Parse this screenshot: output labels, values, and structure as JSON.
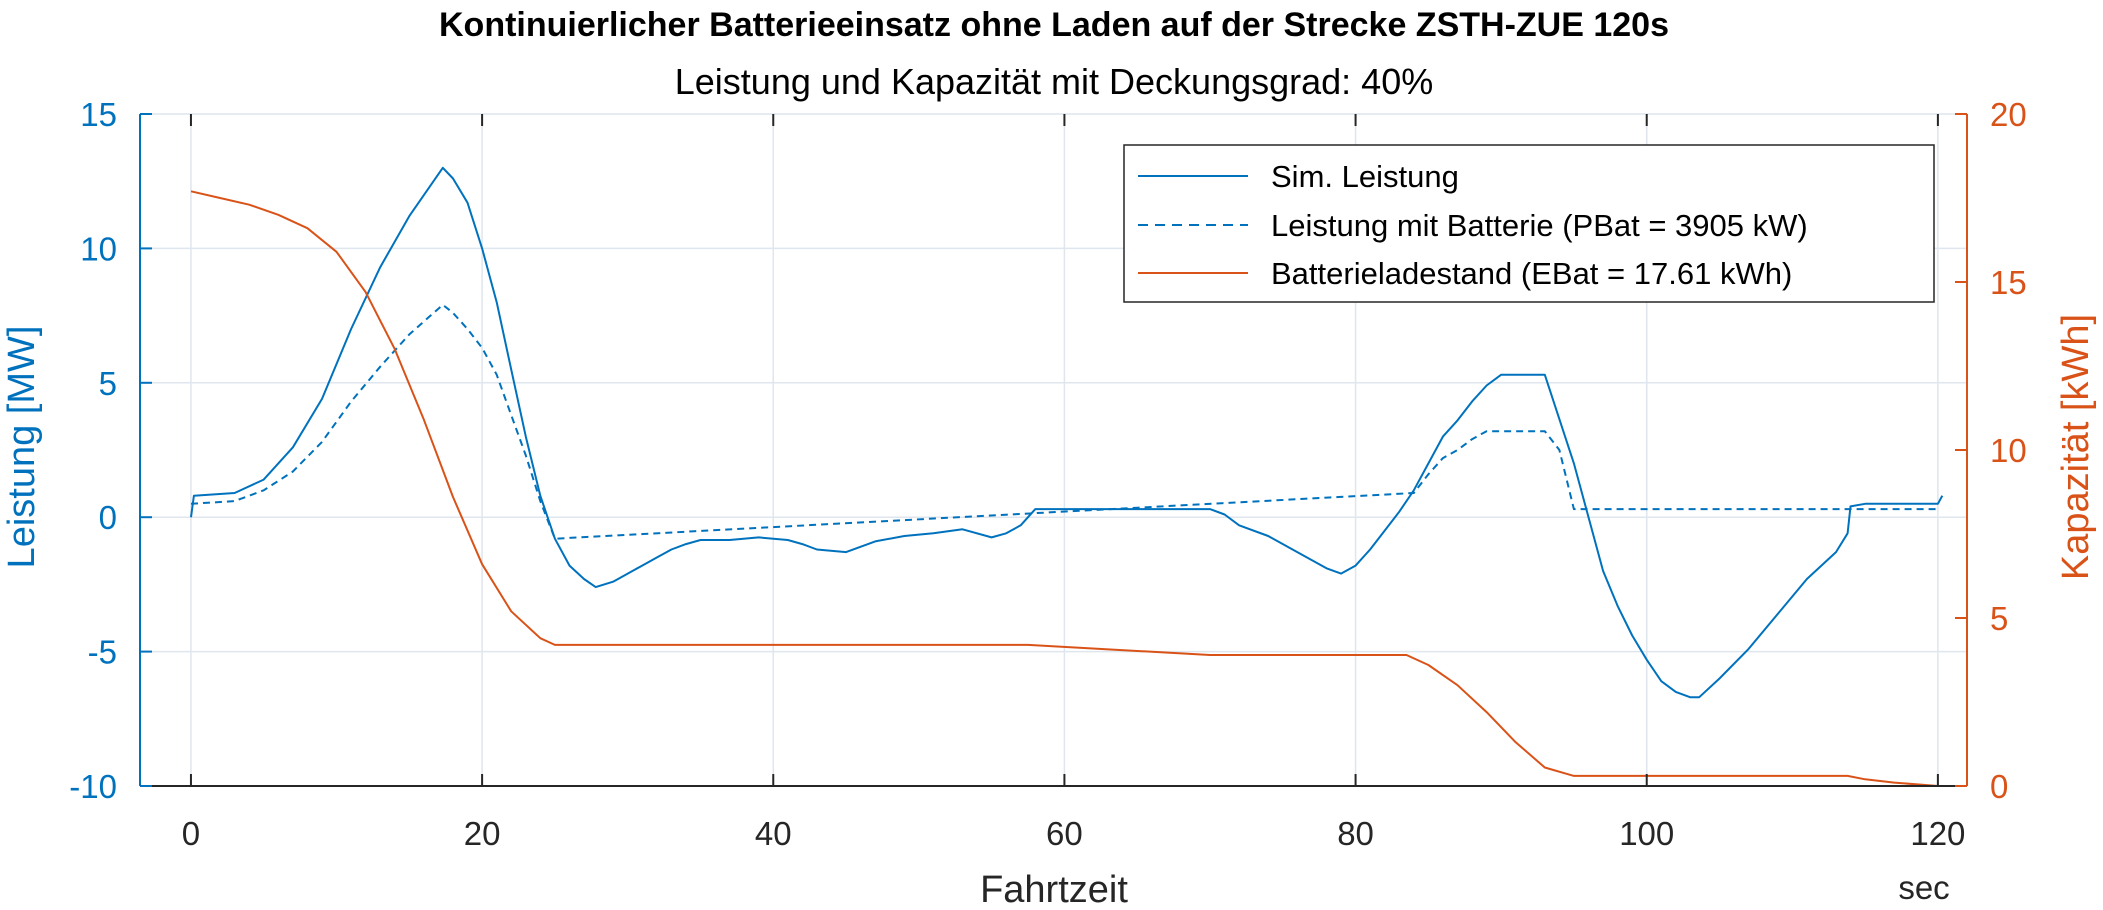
{
  "chart_data": {
    "type": "line",
    "title": "Kontinuierlicher Batterieeinsatz ohne Laden auf der Strecke ZSTH-ZUE 120s",
    "subtitle": "Leistung und Kapazität mit Deckungsgrad: 40%",
    "xlabel": "Fahrtzeit",
    "xunit": "sec",
    "ylabel_left": "Leistung [MW]",
    "ylabel_right": "Kapazität [kWh]",
    "xlim": [
      -3.5,
      122
    ],
    "ylim_left": [
      -10,
      15
    ],
    "ylim_right": [
      0,
      20
    ],
    "xticks": [
      0,
      20,
      40,
      60,
      80,
      100,
      120
    ],
    "xtick_labels": [
      "0",
      "20",
      "40",
      "60",
      "80",
      "100",
      "120"
    ],
    "yticks_left": [
      -10,
      -5,
      0,
      5,
      10,
      15
    ],
    "ytick_labels_left": [
      "-10",
      "-5",
      "0",
      "5",
      "10",
      "15"
    ],
    "yticks_right": [
      0,
      5,
      10,
      15,
      20
    ],
    "ytick_labels_right": [
      "0",
      "5",
      "10",
      "15",
      "20"
    ],
    "grid": true,
    "legend_position": "top-right",
    "colors": {
      "blue": "#0072bd",
      "orange": "#d95319",
      "grid": "#dfe6ee",
      "axis": "#262626"
    },
    "series": [
      {
        "name": "Sim. Leistung",
        "axis": "left",
        "style": "solid",
        "color": "#0072bd",
        "x": [
          0,
          0.2,
          3,
          5,
          7,
          9,
          11,
          13,
          15,
          17.3,
          18,
          19,
          20,
          21,
          22,
          23,
          24,
          25,
          26,
          27,
          27.8,
          29,
          30,
          31,
          32,
          33,
          34,
          35,
          37,
          39,
          41,
          42,
          43,
          45,
          47,
          49,
          51,
          53,
          55,
          56,
          57,
          58,
          60,
          62,
          64,
          66,
          68,
          70,
          71,
          72,
          74,
          76,
          78,
          79,
          80,
          81,
          82,
          83,
          84,
          85,
          86,
          87,
          88,
          89,
          90,
          91,
          93,
          95,
          97,
          98,
          99,
          100,
          101,
          102,
          103,
          103.6,
          105,
          107,
          109,
          111,
          113,
          113.8,
          114,
          115,
          118,
          120,
          120.3
        ],
        "y": [
          0,
          0.8,
          0.9,
          1.4,
          2.6,
          4.4,
          7.0,
          9.3,
          11.2,
          13.0,
          12.6,
          11.7,
          10.0,
          8.0,
          5.5,
          3.0,
          0.8,
          -0.8,
          -1.8,
          -2.3,
          -2.6,
          -2.4,
          -2.1,
          -1.8,
          -1.5,
          -1.2,
          -1.0,
          -0.85,
          -0.85,
          -0.75,
          -0.85,
          -1.0,
          -1.2,
          -1.3,
          -0.9,
          -0.7,
          -0.6,
          -0.45,
          -0.75,
          -0.6,
          -0.3,
          0.3,
          0.3,
          0.3,
          0.3,
          0.3,
          0.3,
          0.3,
          0.1,
          -0.3,
          -0.7,
          -1.3,
          -1.9,
          -2.1,
          -1.8,
          -1.2,
          -0.5,
          0.2,
          1.0,
          2.0,
          3.0,
          3.6,
          4.3,
          4.9,
          5.3,
          5.3,
          5.3,
          2.0,
          -2.0,
          -3.3,
          -4.4,
          -5.3,
          -6.1,
          -6.5,
          -6.7,
          -6.7,
          -6.0,
          -4.9,
          -3.6,
          -2.3,
          -1.3,
          -0.6,
          0.4,
          0.5,
          0.5,
          0.5,
          0.8
        ]
      },
      {
        "name": "Leistung mit Batterie (PBat = 3905 kW)",
        "axis": "left",
        "style": "dashed",
        "color": "#0072bd",
        "x": [
          0,
          3,
          5,
          7,
          9,
          11,
          13,
          15,
          17.3,
          18,
          19,
          20,
          21,
          22,
          23,
          24,
          25,
          84,
          85,
          86,
          87,
          88,
          89,
          90,
          91,
          93,
          94,
          95,
          114,
          120
        ],
        "y": [
          0.5,
          0.6,
          1.0,
          1.7,
          2.8,
          4.3,
          5.6,
          6.8,
          7.9,
          7.6,
          7.0,
          6.3,
          5.3,
          3.8,
          2.3,
          0.6,
          -0.8,
          0.9,
          1.6,
          2.2,
          2.5,
          2.9,
          3.2,
          3.2,
          3.2,
          3.2,
          2.5,
          0.3,
          0.3,
          0.3
        ]
      },
      {
        "name": "Batterieladestand (EBat = 17.61 kWh)",
        "axis": "right",
        "style": "solid",
        "color": "#d95319",
        "x": [
          0,
          2,
          4,
          6,
          8,
          10,
          12,
          14,
          16,
          18,
          20,
          22,
          24,
          25,
          26,
          57.5,
          70,
          83.5,
          85,
          87,
          89,
          91,
          93,
          95,
          113.8,
          115,
          117,
          120
        ],
        "y": [
          17.7,
          17.5,
          17.3,
          17.0,
          16.6,
          15.9,
          14.7,
          13.0,
          10.9,
          8.6,
          6.6,
          5.2,
          4.4,
          4.2,
          4.2,
          4.2,
          3.9,
          3.9,
          3.6,
          3.0,
          2.2,
          1.3,
          0.55,
          0.3,
          0.3,
          0.2,
          0.1,
          0.0
        ]
      }
    ]
  }
}
